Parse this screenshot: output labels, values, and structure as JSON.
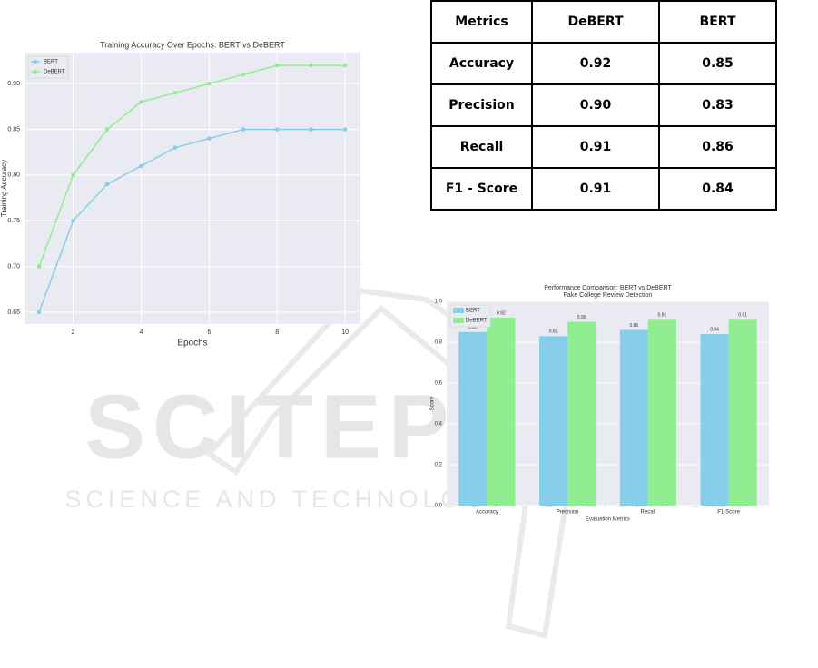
{
  "chart_data": [
    {
      "type": "line",
      "title": "Training Accuracy Over Epochs: BERT vs DeBERT",
      "xlabel": "Epochs",
      "ylabel": "Training Accuracy",
      "x": [
        1,
        2,
        3,
        4,
        5,
        6,
        7,
        8,
        9,
        10
      ],
      "series": [
        {
          "name": "BERT",
          "color": "#87ceeb",
          "values": [
            0.65,
            0.75,
            0.79,
            0.81,
            0.83,
            0.84,
            0.85,
            0.85,
            0.85,
            0.85
          ]
        },
        {
          "name": "DeBERT",
          "color": "#90ee90",
          "values": [
            0.7,
            0.8,
            0.85,
            0.88,
            0.89,
            0.9,
            0.91,
            0.92,
            0.92,
            0.92
          ]
        }
      ],
      "xlim": [
        0.57,
        10.45
      ],
      "xticks": [
        2,
        4,
        6,
        8,
        10
      ],
      "ylim": [
        0.637,
        0.934
      ],
      "yticks": [
        0.65,
        {
          "value": 0.7,
          "label": "0.70"
        },
        0.75,
        {
          "value": 0.8,
          "label": "0.80"
        },
        0.85,
        {
          "value": 0.9,
          "label": "0.90"
        }
      ],
      "grid": true,
      "legend": "upper left"
    },
    {
      "type": "bar",
      "title": "Performance Comparison: BERT vs DeBERT",
      "subtitle": "Fake College Review Detection",
      "xlabel": "Evaluation Metrics",
      "ylabel": "Score",
      "categories": [
        "Accuracy",
        "Precision",
        "Recall",
        "F1-Score"
      ],
      "series": [
        {
          "name": "BERT",
          "color": "#87ceeb",
          "values": [
            0.85,
            0.83,
            0.86,
            0.84
          ],
          "value_labels": [
            "0.85",
            "0.83",
            "0.86",
            "0.84"
          ]
        },
        {
          "name": "DeBERT",
          "color": "#90ee90",
          "values": [
            0.92,
            0.9,
            0.91,
            0.91
          ],
          "value_labels": [
            "0.92",
            "0.90",
            "0.91",
            "0.91"
          ]
        }
      ],
      "ylim": [
        0,
        1
      ],
      "yticks": [
        {
          "value": 0,
          "label": "0.0"
        },
        0.2,
        0.4,
        0.6,
        0.8,
        {
          "value": 1,
          "label": "1.0"
        }
      ],
      "grid": true,
      "legend": "upper left"
    }
  ],
  "table": {
    "header": [
      "Metrics",
      "DeBERT",
      "BERT"
    ],
    "rows": [
      [
        "Accuracy",
        "0.92",
        "0.85"
      ],
      [
        "Precision",
        "0.90",
        "0.83"
      ],
      [
        "Recall",
        "0.91",
        "0.86"
      ],
      [
        "F1 - Score",
        "0.91",
        "0.84"
      ]
    ]
  },
  "watermark": {
    "title": "SCITEPRESS",
    "subtitle": "SCIENCE AND TECHNOLOGY PUBLICATIONS"
  }
}
